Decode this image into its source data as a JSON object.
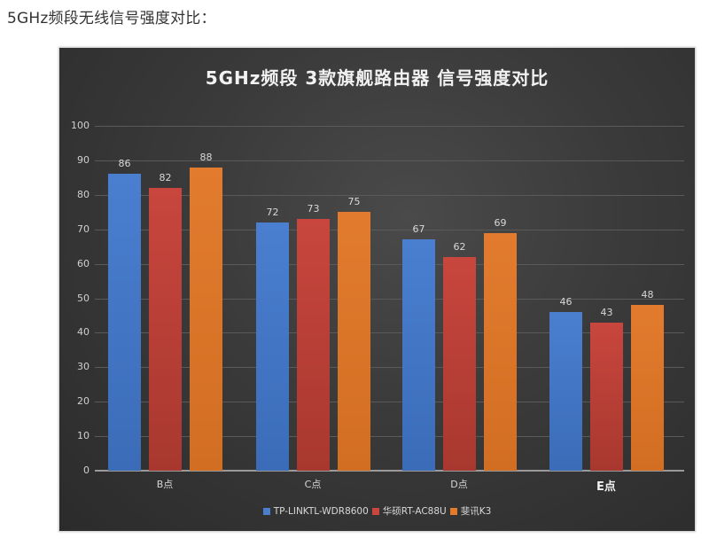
{
  "caption": "5GHz频段无线信号强度对比：",
  "chart_data": {
    "type": "bar",
    "title": "5GHz频段 3款旗舰路由器 信号强度对比",
    "xlabel": "",
    "ylabel": "",
    "ylim": [
      0,
      100
    ],
    "yticks": [
      0,
      10,
      20,
      30,
      40,
      50,
      60,
      70,
      80,
      90,
      100
    ],
    "grid": true,
    "legend_position": "bottom",
    "categories": [
      "B点",
      "C点",
      "D点",
      "E点"
    ],
    "series": [
      {
        "name": "TP-LINKTL-WDR8600",
        "color": "#4a7fd0",
        "values": [
          86,
          72,
          67,
          46
        ]
      },
      {
        "name": "华硕RT-AC88U",
        "color": "#c8463d",
        "values": [
          82,
          73,
          62,
          43
        ]
      },
      {
        "name": "斐讯K3",
        "color": "#e27b2e",
        "values": [
          88,
          75,
          69,
          48
        ]
      }
    ]
  }
}
